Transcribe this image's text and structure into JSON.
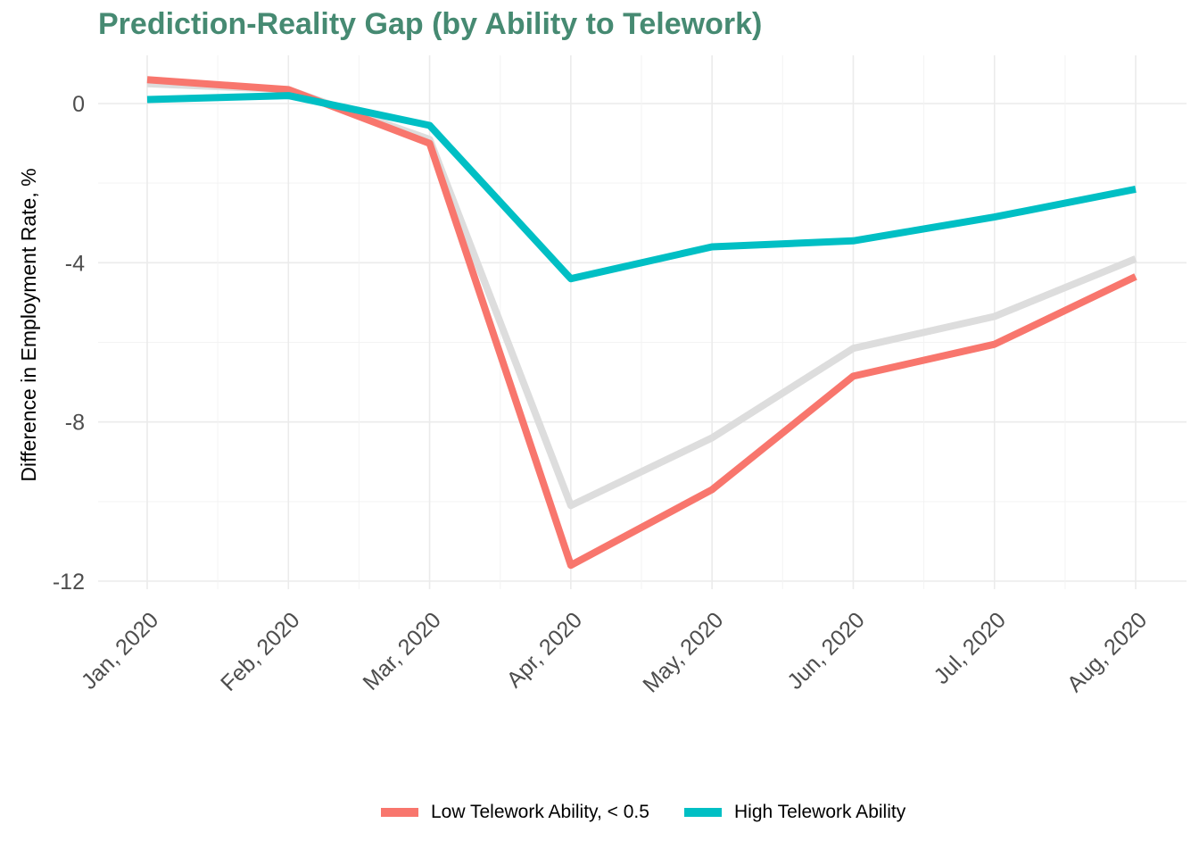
{
  "chart_data": {
    "type": "line",
    "title": "Prediction-Reality Gap (by Ability to Telework)",
    "xlabel": "",
    "ylabel": "Difference in Employment Rate, %",
    "categories": [
      "Jan, 2020",
      "Feb, 2020",
      "Mar, 2020",
      "Apr, 2020",
      "May, 2020",
      "Jun, 2020",
      "Jul, 2020",
      "Aug, 2020"
    ],
    "yticks": [
      0,
      -4,
      -8,
      -12
    ],
    "ytick_labels": [
      "0",
      "-4",
      "-8",
      "-12"
    ],
    "ylim": [
      -12.1,
      1.2
    ],
    "grid": true,
    "legend_position": "bottom",
    "series": [
      {
        "key": "overall",
        "name": "",
        "color": "#dddddd",
        "values": [
          0.5,
          0.35,
          -0.9,
          -10.1,
          -8.4,
          -6.15,
          -5.35,
          -3.9
        ]
      },
      {
        "name": "Low Telework Ability, < 0.5",
        "color": "#f8766d",
        "values": [
          0.6,
          0.35,
          -1.0,
          -11.6,
          -9.7,
          -6.85,
          -6.05,
          -4.35
        ]
      },
      {
        "name": "High Telework Ability",
        "color": "#00bfc4",
        "values": [
          0.1,
          0.2,
          -0.55,
          -4.4,
          -3.6,
          -3.45,
          -2.85,
          -2.15
        ]
      }
    ]
  }
}
